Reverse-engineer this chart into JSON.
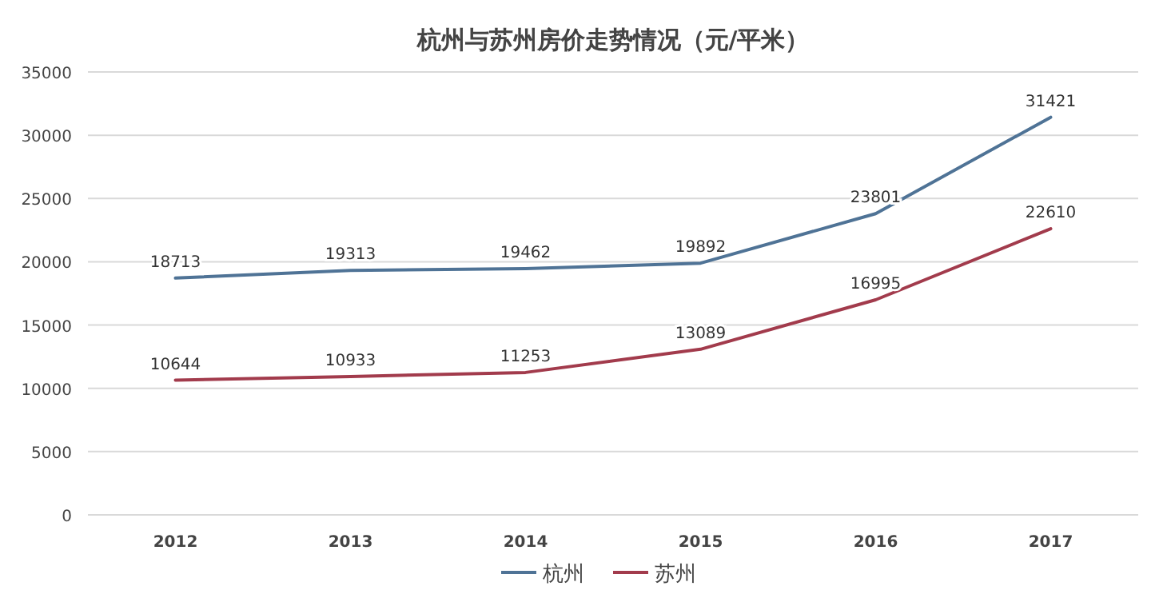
{
  "chart_data": {
    "type": "line",
    "title": "杭州与苏州房价走势情况（元/平米）",
    "categories": [
      "2012",
      "2013",
      "2014",
      "2015",
      "2016",
      "2017"
    ],
    "series": [
      {
        "name": "杭州",
        "color": "#4f7396",
        "values": [
          18713,
          19313,
          19462,
          19892,
          23801,
          31421
        ]
      },
      {
        "name": "苏州",
        "color": "#a23b4c",
        "values": [
          10644,
          10933,
          11253,
          13089,
          16995,
          22610
        ]
      }
    ],
    "ylim": [
      0,
      35000
    ],
    "yticks": [
      0,
      5000,
      10000,
      15000,
      20000,
      25000,
      30000,
      35000
    ],
    "grid": "y",
    "legend": "bottom",
    "data_labels": true,
    "line_style": "solid"
  }
}
